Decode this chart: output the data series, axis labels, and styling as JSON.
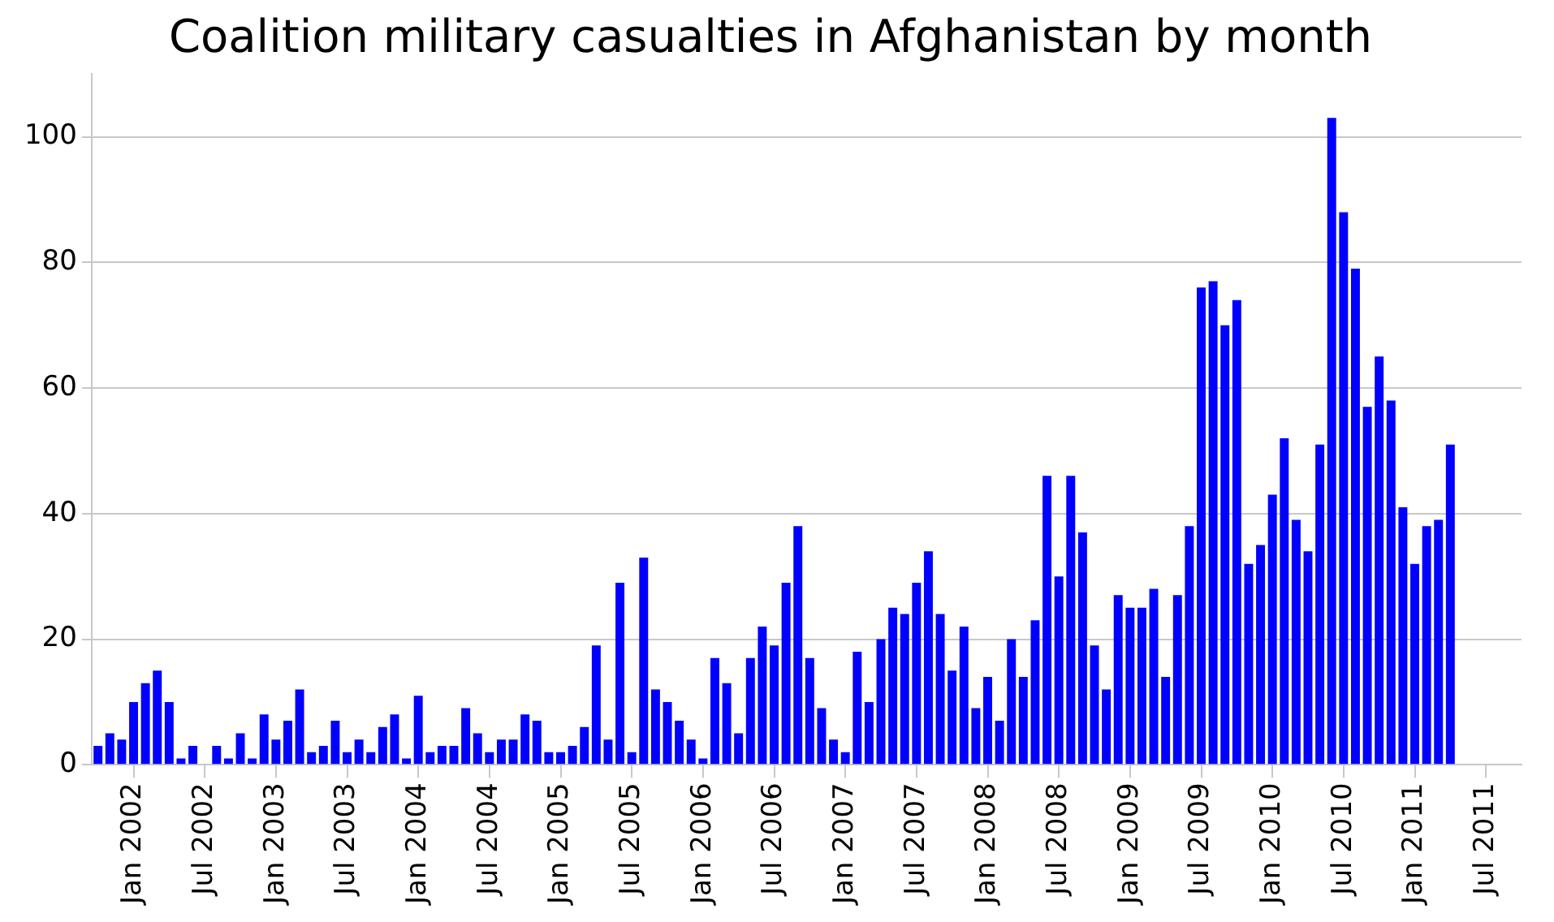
{
  "chart_data": {
    "type": "bar",
    "title": "Coalition military casualties in Afghanistan by month",
    "x": [
      "2001-10",
      "2001-11",
      "2001-12",
      "2002-01",
      "2002-02",
      "2002-03",
      "2002-04",
      "2002-05",
      "2002-06",
      "2002-07",
      "2002-08",
      "2002-09",
      "2002-10",
      "2002-11",
      "2002-12",
      "2003-01",
      "2003-02",
      "2003-03",
      "2003-04",
      "2003-05",
      "2003-06",
      "2003-07",
      "2003-08",
      "2003-09",
      "2003-10",
      "2003-11",
      "2003-12",
      "2004-01",
      "2004-02",
      "2004-03",
      "2004-04",
      "2004-05",
      "2004-06",
      "2004-07",
      "2004-08",
      "2004-09",
      "2004-10",
      "2004-11",
      "2004-12",
      "2005-01",
      "2005-02",
      "2005-03",
      "2005-04",
      "2005-05",
      "2005-06",
      "2005-07",
      "2005-08",
      "2005-09",
      "2005-10",
      "2005-11",
      "2005-12",
      "2006-01",
      "2006-02",
      "2006-03",
      "2006-04",
      "2006-05",
      "2006-06",
      "2006-07",
      "2006-08",
      "2006-09",
      "2006-10",
      "2006-11",
      "2006-12",
      "2007-01",
      "2007-02",
      "2007-03",
      "2007-04",
      "2007-05",
      "2007-06",
      "2007-07",
      "2007-08",
      "2007-09",
      "2007-10",
      "2007-11",
      "2007-12",
      "2008-01",
      "2008-02",
      "2008-03",
      "2008-04",
      "2008-05",
      "2008-06",
      "2008-07",
      "2008-08",
      "2008-09",
      "2008-10",
      "2008-11",
      "2008-12",
      "2009-01",
      "2009-02",
      "2009-03",
      "2009-04",
      "2009-05",
      "2009-06",
      "2009-07",
      "2009-08",
      "2009-09",
      "2009-10",
      "2009-11",
      "2009-12",
      "2010-01",
      "2010-02",
      "2010-03",
      "2010-04",
      "2010-05",
      "2010-06",
      "2010-07",
      "2010-08",
      "2010-09",
      "2010-10",
      "2010-11",
      "2010-12",
      "2011-01",
      "2011-02",
      "2011-03",
      "2011-04"
    ],
    "values": [
      3,
      5,
      4,
      10,
      13,
      15,
      10,
      1,
      3,
      0,
      3,
      1,
      5,
      1,
      8,
      4,
      7,
      12,
      2,
      3,
      7,
      2,
      4,
      2,
      6,
      8,
      1,
      11,
      2,
      3,
      3,
      9,
      5,
      2,
      4,
      4,
      8,
      7,
      2,
      2,
      3,
      6,
      19,
      4,
      29,
      2,
      33,
      12,
      10,
      7,
      4,
      1,
      17,
      13,
      5,
      17,
      22,
      19,
      29,
      38,
      17,
      9,
      4,
      2,
      18,
      10,
      20,
      25,
      24,
      29,
      34,
      24,
      15,
      22,
      9,
      14,
      7,
      20,
      14,
      23,
      46,
      30,
      46,
      37,
      19,
      12,
      27,
      25,
      25,
      28,
      14,
      27,
      38,
      76,
      77,
      70,
      74,
      32,
      35,
      43,
      52,
      39,
      34,
      51,
      103,
      88,
      79,
      57,
      65,
      58,
      41,
      32,
      38,
      39,
      51
    ],
    "color": "#0000ff",
    "xlim": [
      "2001-09-15",
      "2011-10-01"
    ],
    "xticks": [
      {
        "value": "2002-01",
        "label": "Jan 2002"
      },
      {
        "value": "2002-07",
        "label": "Jul 2002"
      },
      {
        "value": "2003-01",
        "label": "Jan 2003"
      },
      {
        "value": "2003-07",
        "label": "Jul 2003"
      },
      {
        "value": "2004-01",
        "label": "Jan 2004"
      },
      {
        "value": "2004-07",
        "label": "Jul 2004"
      },
      {
        "value": "2005-01",
        "label": "Jan 2005"
      },
      {
        "value": "2005-07",
        "label": "Jul 2005"
      },
      {
        "value": "2006-01",
        "label": "Jan 2006"
      },
      {
        "value": "2006-07",
        "label": "Jul 2006"
      },
      {
        "value": "2007-01",
        "label": "Jan 2007"
      },
      {
        "value": "2007-07",
        "label": "Jul 2007"
      },
      {
        "value": "2008-01",
        "label": "Jan 2008"
      },
      {
        "value": "2008-07",
        "label": "Jul 2008"
      },
      {
        "value": "2009-01",
        "label": "Jan 2009"
      },
      {
        "value": "2009-07",
        "label": "Jul 2009"
      },
      {
        "value": "2010-01",
        "label": "Jan 2010"
      },
      {
        "value": "2010-07",
        "label": "Jul 2010"
      },
      {
        "value": "2011-01",
        "label": "Jan 2011"
      },
      {
        "value": "2011-07",
        "label": "Jul 2011"
      }
    ],
    "ylim": [
      0,
      110
    ],
    "yticks": [
      0,
      20,
      40,
      60,
      80,
      100
    ],
    "grid": "y",
    "legend": false
  }
}
